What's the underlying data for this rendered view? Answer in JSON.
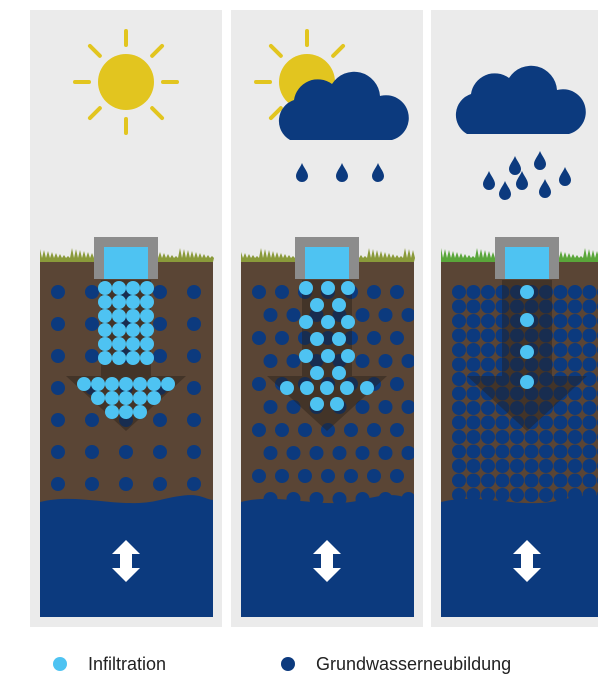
{
  "legend": [
    {
      "label": "Infiltration",
      "color": "#4ec3f2"
    },
    {
      "label": "Grundwasserneubildung",
      "color": "#0c3a7e"
    }
  ]
}
